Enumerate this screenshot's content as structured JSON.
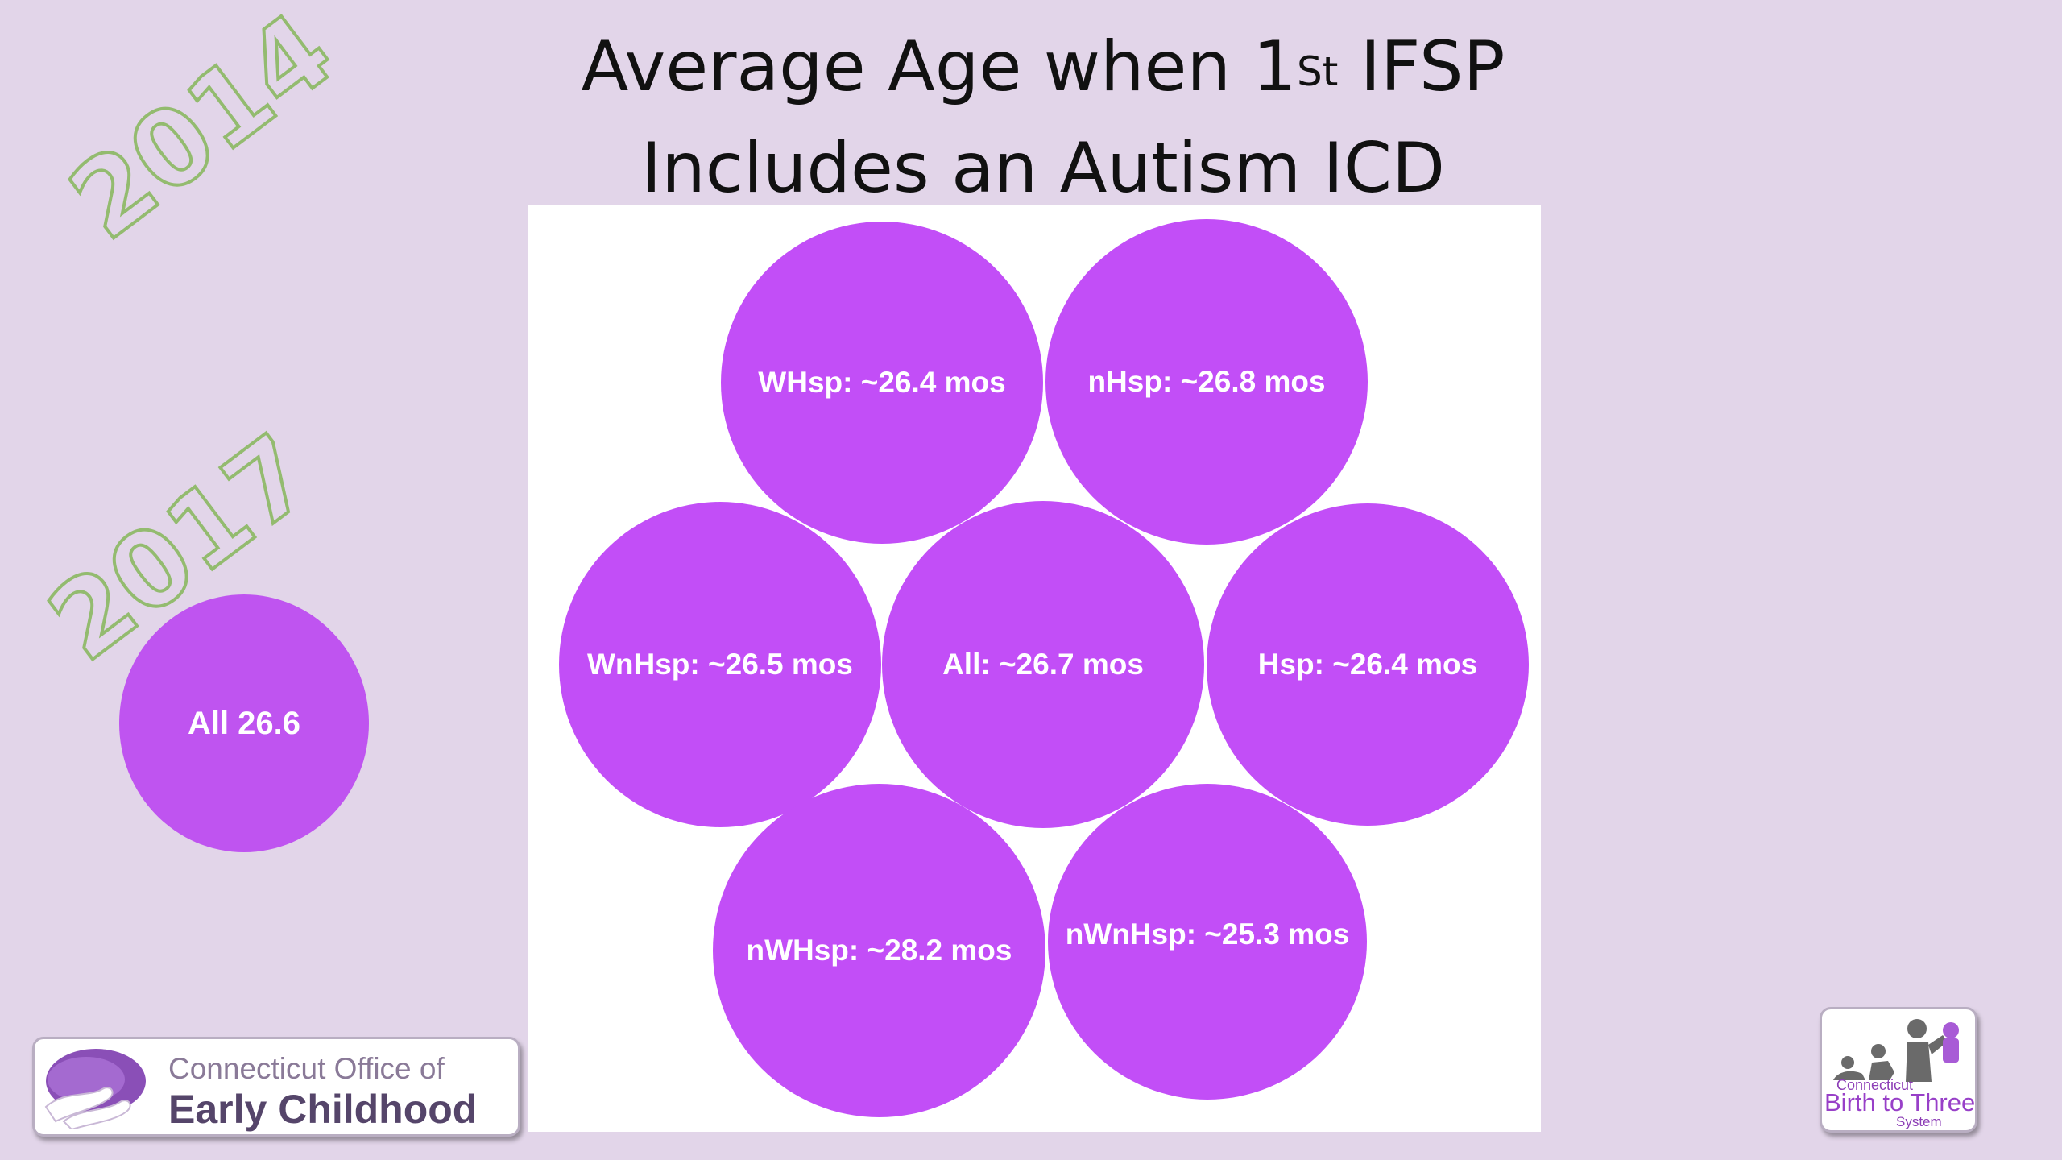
{
  "slide": {
    "title_line1_prefix": "Average Age when 1",
    "title_superscript": "St",
    "title_line1_suffix": " IFSP",
    "title_line2": "Includes an Autism ICD",
    "year_labels": {
      "first": "2014",
      "second": "2017"
    },
    "side_bubble": "All 26.6"
  },
  "bubbles": {
    "wh_hsp": "WHsp: ~26.4 mos",
    "n_hsp": "nHsp: ~26.8 mos",
    "wn_hsp": "WnHsp: ~26.5 mos",
    "all": "All: ~26.7 mos",
    "hsp": "Hsp: ~26.4 mos",
    "nw_hsp": "nWHsp: ~28.2 mos",
    "nwn_hsp": "nWnHsp: ~25.3 mos"
  },
  "logos": {
    "oec_line1": "Connecticut Office of",
    "oec_line2": "Early Childhood",
    "b23_line1": "Connecticut",
    "b23_line2": "Birth to Three",
    "b23_line3": "System"
  },
  "colors": {
    "background": "#e2d5e9",
    "bubble": "#c24ef7",
    "year_outline": "#93bb6f"
  }
}
